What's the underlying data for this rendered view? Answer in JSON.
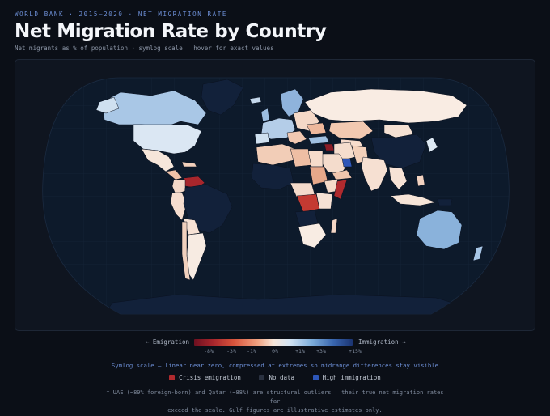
{
  "header": {
    "eyebrow": "WORLD BANK · 2015–2020 · NET MIGRATION RATE",
    "title": "Net Migration Rate by Country",
    "subtitle": "Net migrants as % of population · symlog scale · hover for exact values"
  },
  "legend": {
    "left_label": "← Emigration",
    "right_label": "Immigration →",
    "ticks": [
      "-8%",
      "-3%",
      "-1%",
      "0%",
      "+1%",
      "+3%",
      "+15%"
    ],
    "scale_note": "Symlog scale — linear near zero, compressed at extremes so midrange differences stay visible",
    "swatches": [
      {
        "label": "Crisis emigration",
        "color": "#b02a2e"
      },
      {
        "label": "No data",
        "color": "#2a3140"
      },
      {
        "label": "High immigration",
        "color": "#2d56b8"
      }
    ]
  },
  "footnote": {
    "line1": "† UAE (~89% foreign-born) and Qatar (~88%) are structural outliers — their true net migration rates far",
    "line2": "exceed the scale. Gulf figures are illustrative estimates only."
  },
  "colors": {
    "background": "#0b0f17",
    "ocean": "#0d1a2b",
    "no_data": "#12213a",
    "emigration_strong": "#b02a2e",
    "immigration_strong": "#2d56b8",
    "accent": "#6d8fd6"
  },
  "map_data": {
    "projection": "Natural Earth",
    "metric": "net migration rate (% of population)",
    "regions": [
      {
        "name": "Canada",
        "shade": "light-blue"
      },
      {
        "name": "United States",
        "shade": "pale-blue"
      },
      {
        "name": "Mexico",
        "shade": "light-peach"
      },
      {
        "name": "Central America",
        "shade": "peach"
      },
      {
        "name": "Venezuela",
        "shade": "dark-red"
      },
      {
        "name": "Colombia",
        "shade": "light-peach"
      },
      {
        "name": "Brazil",
        "shade": "no-data"
      },
      {
        "name": "Peru",
        "shade": "light-peach"
      },
      {
        "name": "Argentina",
        "shade": "pale"
      },
      {
        "name": "Chile",
        "shade": "light-peach"
      },
      {
        "name": "Greenland",
        "shade": "no-data"
      },
      {
        "name": "Western Europe",
        "shade": "light-blue"
      },
      {
        "name": "Scandinavia",
        "shade": "light-blue"
      },
      {
        "name": "Russia",
        "shade": "pale"
      },
      {
        "name": "Kazakhstan",
        "shade": "peach"
      },
      {
        "name": "North Africa",
        "shade": "peach"
      },
      {
        "name": "Libya",
        "shade": "peach"
      },
      {
        "name": "Sudan",
        "shade": "peach"
      },
      {
        "name": "Syria",
        "shade": "dark-red"
      },
      {
        "name": "Saudi Arabia",
        "shade": "light-peach"
      },
      {
        "name": "Gulf states",
        "shade": "blue"
      },
      {
        "name": "Somalia",
        "shade": "red"
      },
      {
        "name": "DR Congo",
        "shade": "red"
      },
      {
        "name": "Southern Africa",
        "shade": "pale"
      },
      {
        "name": "China",
        "shade": "no-data"
      },
      {
        "name": "India",
        "shade": "light-peach"
      },
      {
        "name": "Southeast Asia",
        "shade": "light-peach"
      },
      {
        "name": "Australia",
        "shade": "light-blue"
      },
      {
        "name": "New Zealand",
        "shade": "light-blue"
      },
      {
        "name": "Antarctica",
        "shade": "no-data"
      }
    ]
  }
}
